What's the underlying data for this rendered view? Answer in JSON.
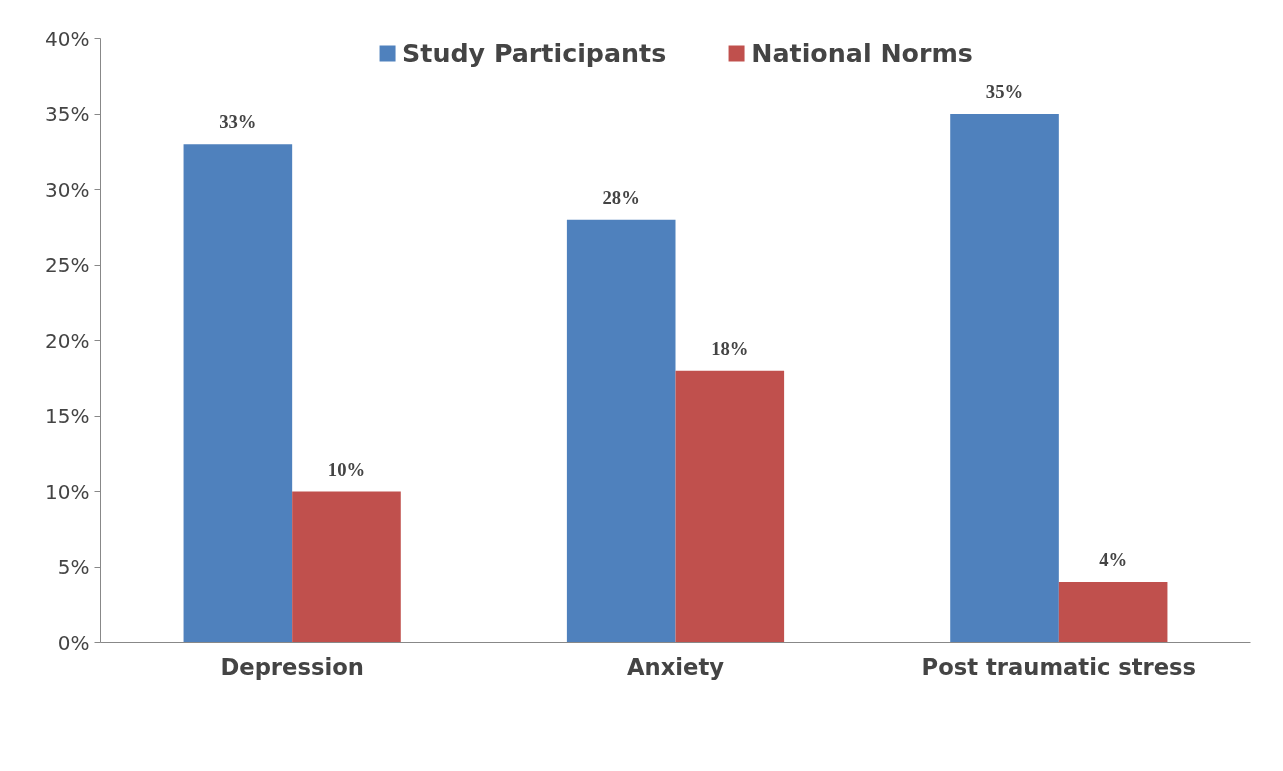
{
  "chart_data": {
    "type": "bar",
    "categories": [
      "Depression",
      "Anxiety",
      "Post traumatic stress"
    ],
    "series": [
      {
        "name": "Study Participants",
        "color": "#4f81bd",
        "values": [
          33,
          28,
          35
        ],
        "value_labels": [
          "33%",
          "28%",
          "35%"
        ]
      },
      {
        "name": "National Norms",
        "color": "#c0504d",
        "values": [
          10,
          18,
          4
        ],
        "value_labels": [
          "10%",
          "18%",
          "4%"
        ]
      }
    ],
    "ylim": [
      0,
      40
    ],
    "yticks": [
      {
        "value": 0,
        "label": "0%"
      },
      {
        "value": 5,
        "label": "5%"
      },
      {
        "value": 10,
        "label": "10%"
      },
      {
        "value": 15,
        "label": "15%"
      },
      {
        "value": 20,
        "label": "20%"
      },
      {
        "value": 25,
        "label": "25%"
      },
      {
        "value": 30,
        "label": "30%"
      },
      {
        "value": 35,
        "label": "35%"
      },
      {
        "value": 40,
        "label": "40%"
      }
    ],
    "grid": false,
    "legend": "top"
  }
}
